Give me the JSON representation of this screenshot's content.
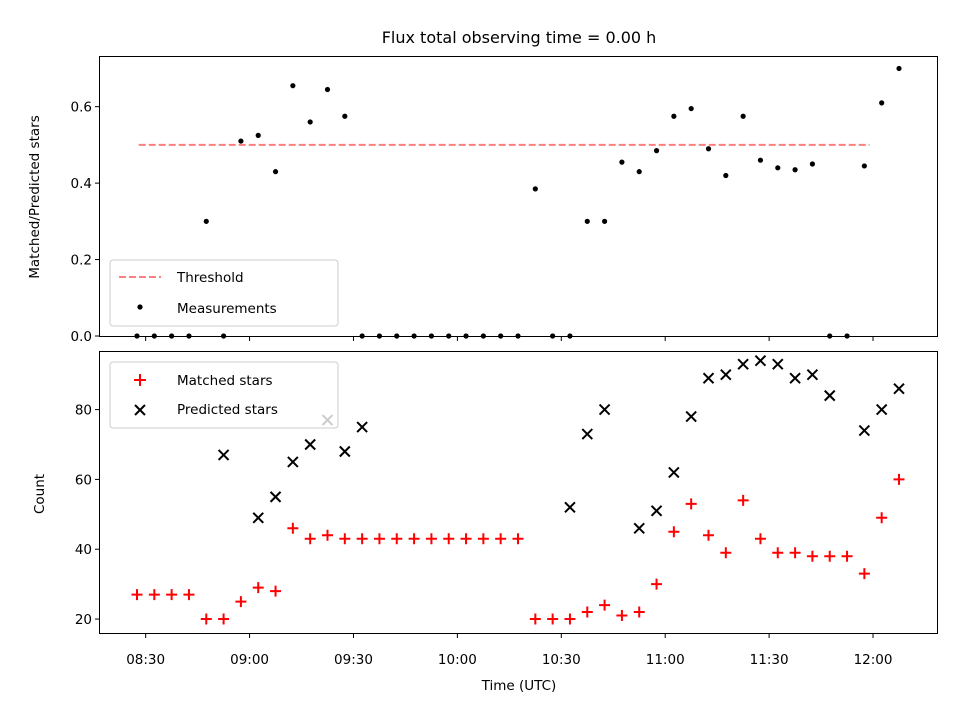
{
  "figure_title": "Flux total observing time = 0.00 h",
  "x_label": "Time (UTC)",
  "x_ticks": [
    {
      "label": "08:30",
      "value": 510
    },
    {
      "label": "09:00",
      "value": 540
    },
    {
      "label": "09:30",
      "value": 570
    },
    {
      "label": "10:00",
      "value": 600
    },
    {
      "label": "10:30",
      "value": 630
    },
    {
      "label": "11:00",
      "value": 660
    },
    {
      "label": "11:30",
      "value": 690
    },
    {
      "label": "12:00",
      "value": 720
    }
  ],
  "colors": {
    "threshold": "#ff7f7f",
    "measurements": "#000000",
    "matched": "#ff0000",
    "predicted": "#000000"
  },
  "chart_data": [
    {
      "type": "scatter",
      "x_unit": "minutes since 00:00 UTC",
      "ylabel": "Matched/Predicted stars",
      "ylim": [
        0,
        0.73
      ],
      "y_ticks": [
        "0.0",
        "0.2",
        "0.4",
        "0.6"
      ],
      "y_tick_values": [
        0,
        0.2,
        0.4,
        0.6
      ],
      "legend_position": "lower-left",
      "threshold": {
        "name": "Threshold",
        "value": 0.5,
        "x_range": [
          508,
          719
        ]
      },
      "series": [
        {
          "name": "Measurements",
          "x": [
            507.5,
            512.5,
            517.5,
            522.5,
            527.5,
            532.5,
            537.5,
            542.5,
            547.5,
            552.5,
            557.5,
            562.5,
            567.5,
            572.5,
            577.5,
            582.5,
            587.5,
            592.5,
            597.5,
            602.5,
            607.5,
            612.5,
            617.5,
            622.5,
            627.5,
            632.5,
            637.5,
            642.5,
            647.5,
            652.5,
            657.5,
            662.5,
            667.5,
            672.5,
            677.5,
            682.5,
            687.5,
            692.5,
            697.5,
            702.5,
            707.5,
            712.5,
            717.5,
            722.5,
            727.5
          ],
          "y": [
            0,
            0,
            0,
            0,
            0.3,
            0,
            0.51,
            0.525,
            0.43,
            0.655,
            0.56,
            0.645,
            0.575,
            0,
            0,
            0,
            0,
            0,
            0,
            0,
            0,
            0,
            0,
            0.385,
            0,
            0,
            0.3,
            0.3,
            0.455,
            0.43,
            0.485,
            0.575,
            0.595,
            0.49,
            0.42,
            0.575,
            0.46,
            0.44,
            0.435,
            0.45,
            0,
            0,
            0.445,
            0.61,
            0.7
          ]
        }
      ]
    },
    {
      "type": "scatter",
      "x_unit": "minutes since 00:00 UTC",
      "ylabel": "Count",
      "ylim": [
        16,
        96.5
      ],
      "y_ticks": [
        "20",
        "40",
        "60",
        "80"
      ],
      "y_tick_values": [
        20,
        40,
        60,
        80
      ],
      "legend_position": "upper-left",
      "series": [
        {
          "name": "Matched stars",
          "marker": "plus",
          "x": [
            507.5,
            512.5,
            517.5,
            522.5,
            527.5,
            532.5,
            537.5,
            542.5,
            547.5,
            552.5,
            557.5,
            562.5,
            567.5,
            572.5,
            577.5,
            582.5,
            587.5,
            592.5,
            597.5,
            602.5,
            607.5,
            612.5,
            617.5,
            622.5,
            627.5,
            632.5,
            637.5,
            642.5,
            647.5,
            652.5,
            657.5,
            662.5,
            667.5,
            672.5,
            677.5,
            682.5,
            687.5,
            692.5,
            697.5,
            702.5,
            707.5,
            712.5,
            717.5,
            722.5,
            727.5
          ],
          "y": [
            27,
            27,
            27,
            27,
            20,
            20,
            25,
            29,
            28,
            46,
            43,
            44,
            43,
            43,
            43,
            43,
            43,
            43,
            43,
            43,
            43,
            43,
            43,
            20,
            20,
            20,
            22,
            24,
            21,
            22,
            30,
            45,
            53,
            44,
            39,
            54,
            43,
            39,
            39,
            38,
            38,
            38,
            33,
            49,
            60
          ]
        },
        {
          "name": "Predicted stars",
          "marker": "x",
          "x": [
            532.5,
            542.5,
            547.5,
            552.5,
            557.5,
            562.5,
            567.5,
            572.5,
            632.5,
            637.5,
            642.5,
            652.5,
            657.5,
            662.5,
            667.5,
            672.5,
            677.5,
            682.5,
            687.5,
            692.5,
            697.5,
            702.5,
            707.5,
            717.5,
            722.5,
            727.5
          ],
          "y": [
            67,
            49,
            55,
            65,
            70,
            77,
            68,
            75,
            52,
            73,
            80,
            46,
            51,
            62,
            78,
            89,
            90,
            93,
            94,
            93,
            89,
            90,
            84,
            74,
            80,
            86
          ]
        }
      ]
    }
  ]
}
